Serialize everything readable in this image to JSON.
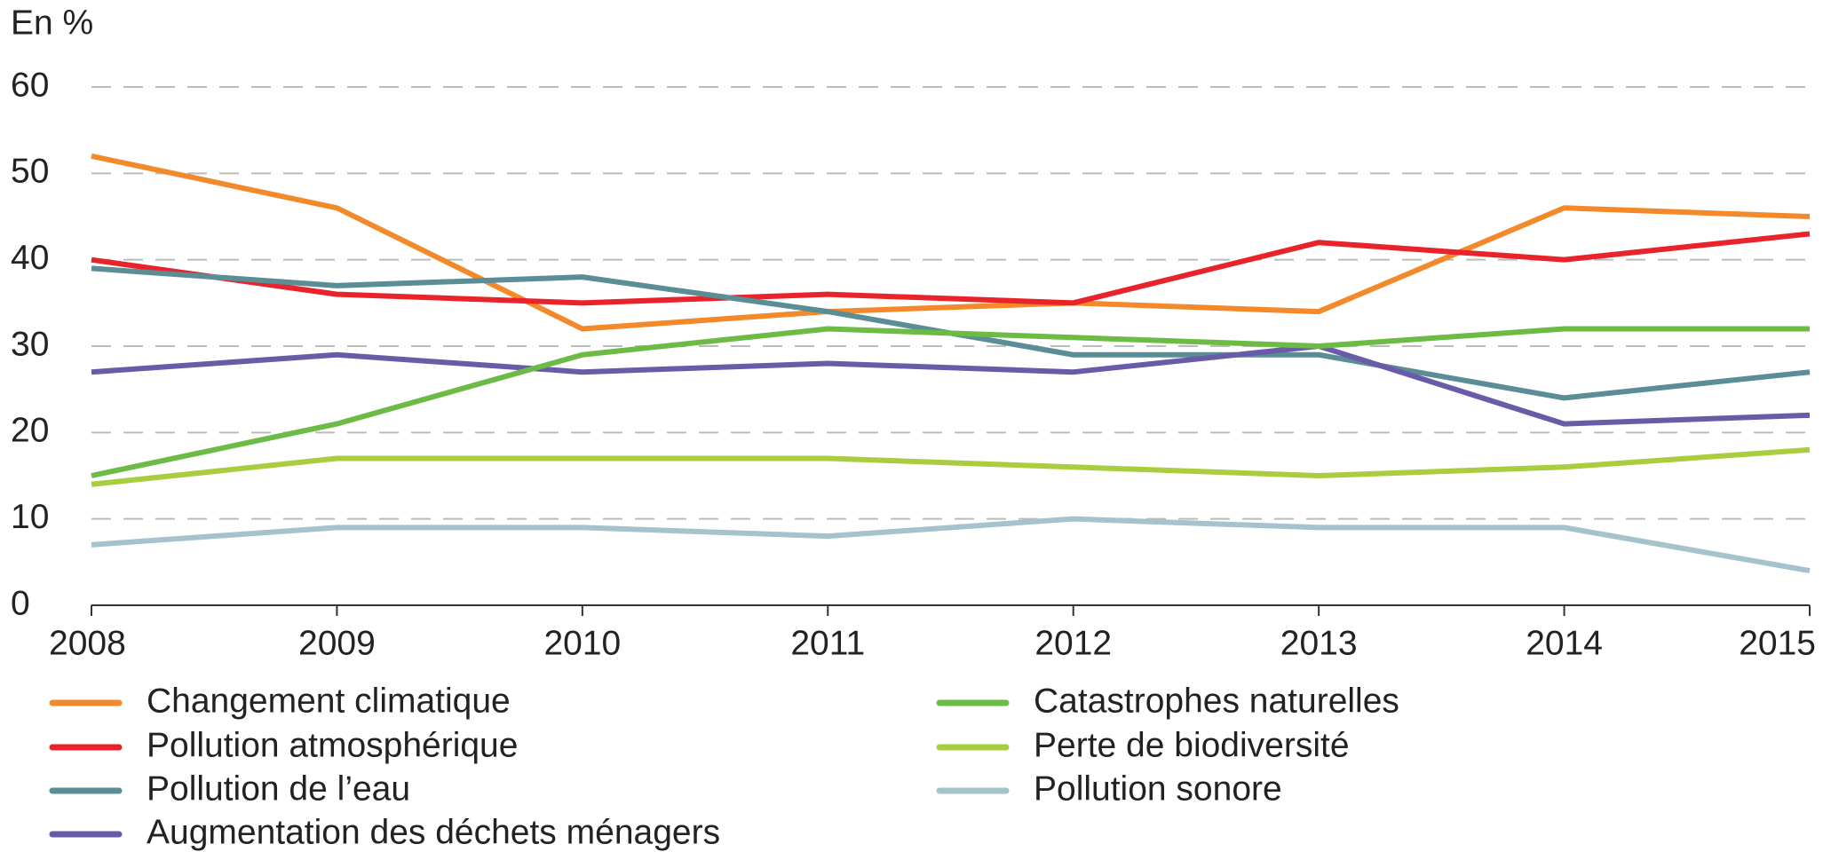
{
  "chart_data": {
    "type": "line",
    "y_label": "En %",
    "x": [
      2008,
      2009,
      2010,
      2011,
      2012,
      2013,
      2014,
      2015
    ],
    "xlim": [
      2008,
      2015
    ],
    "xticks": [
      2008,
      2009,
      2010,
      2011,
      2012,
      2013,
      2014,
      2015
    ],
    "ylim": [
      0,
      60
    ],
    "yticks": [
      0,
      10,
      20,
      30,
      40,
      50,
      60
    ],
    "grid": true,
    "series": [
      {
        "name": "Changement climatique",
        "color": "#f28a2b",
        "values": [
          52,
          46,
          32,
          34,
          35,
          34,
          46,
          45
        ]
      },
      {
        "name": "Pollution atmosphérique",
        "color": "#e8232a",
        "values": [
          40,
          36,
          35,
          36,
          35,
          42,
          40,
          43
        ]
      },
      {
        "name": "Pollution de l’eau",
        "color": "#5a8d96",
        "values": [
          39,
          37,
          38,
          34,
          29,
          29,
          24,
          27
        ]
      },
      {
        "name": "Augmentation des déchets ménagers",
        "color": "#6a5ba8",
        "values": [
          27,
          29,
          27,
          28,
          27,
          30,
          21,
          22
        ]
      },
      {
        "name": "Catastrophes naturelles",
        "color": "#6bbb45",
        "values": [
          15,
          21,
          29,
          32,
          31,
          30,
          32,
          32
        ]
      },
      {
        "name": "Perte de biodiversité",
        "color": "#a8cd3e",
        "values": [
          14,
          17,
          17,
          17,
          16,
          15,
          16,
          18
        ]
      },
      {
        "name": "Pollution sonore",
        "color": "#a4c3cc",
        "values": [
          7,
          9,
          9,
          8,
          10,
          9,
          9,
          4
        ]
      }
    ]
  }
}
